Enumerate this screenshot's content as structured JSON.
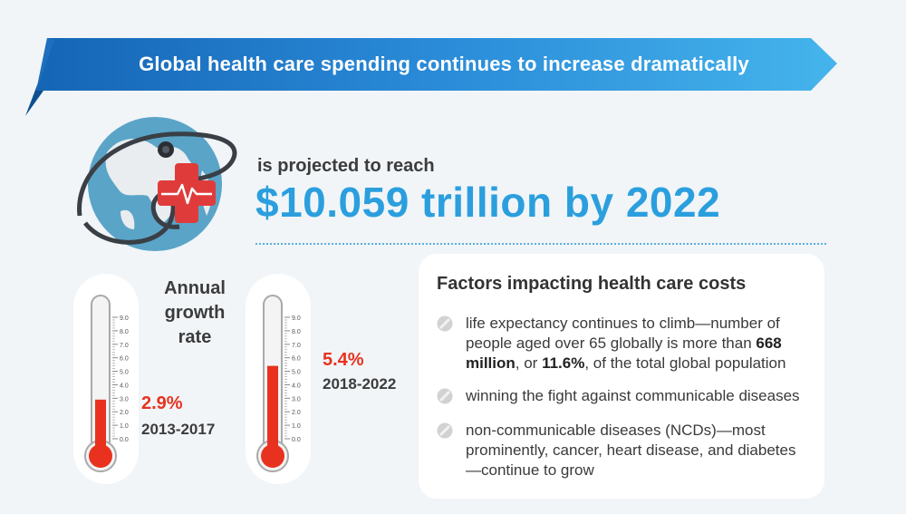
{
  "header": {
    "title": "Global health care spending continues to increase dramatically"
  },
  "projection": {
    "prefix": "is projected to reach",
    "value": "$10.059 trillion by 2022"
  },
  "growth": {
    "title": "Annual growth rate",
    "scale_labels": [
      "9.0",
      "8.0",
      "7.0",
      "6.0",
      "5.0",
      "4.0",
      "3.0",
      "2.0",
      "1.0",
      "0.0"
    ],
    "scale_min": 0,
    "scale_max": 9,
    "rates": [
      {
        "value_label": "2.9%",
        "value": 2.9,
        "period": "2013-2017"
      },
      {
        "value_label": "5.4%",
        "value": 5.4,
        "period": "2018-2022"
      }
    ]
  },
  "factors": {
    "title": "Factors impacting health care costs",
    "items": [
      {
        "text_before": "life expectancy continues to climb—number of people aged over 65 globally is more than ",
        "bold1": "668 million",
        "text_mid": ", or ",
        "bold2": "11.6%",
        "text_after": ", of the total global population"
      },
      {
        "text": "winning the fight against communicable diseases"
      },
      {
        "text": "non-communicable diseases (NCDs)—most prominently, cancer, heart disease, and diabetes—continue to grow"
      }
    ]
  },
  "colors": {
    "banner": "#1e7fd0",
    "accent": "#2b9fde",
    "thermo_fill": "#e8321f"
  }
}
